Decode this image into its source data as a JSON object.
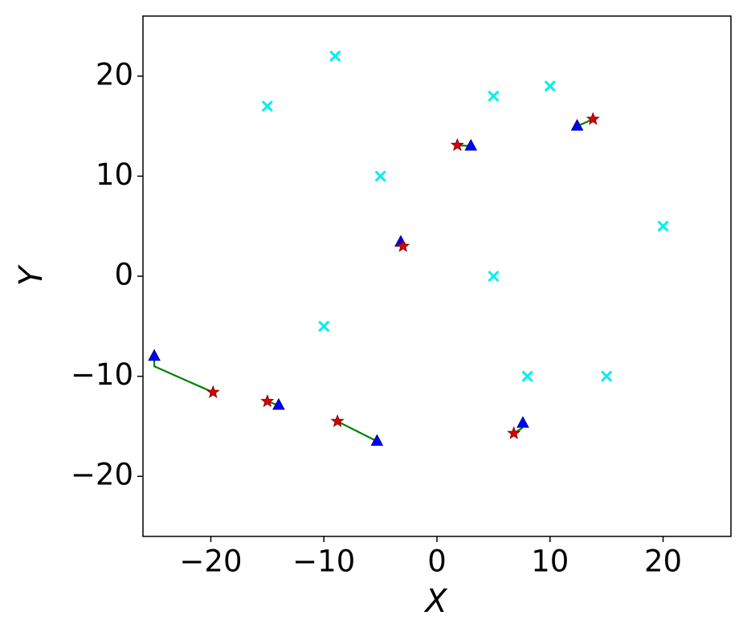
{
  "chart_data": {
    "type": "scatter",
    "x_label": "X",
    "y_label": "Y",
    "xlim": [
      -26,
      26
    ],
    "ylim": [
      -26,
      26
    ],
    "xticks": [
      {
        "value": -20,
        "label": "−20"
      },
      {
        "value": -10,
        "label": "−10"
      },
      0,
      10,
      20
    ],
    "yticks": [
      {
        "value": -20,
        "label": "−20"
      },
      {
        "value": -10,
        "label": "−10"
      },
      0,
      10,
      20
    ],
    "series": [
      {
        "marker": "line",
        "color": "#008000",
        "x": [
          -25,
          -25,
          -22,
          -19.8
        ],
        "values": [
          -8,
          -9,
          -10.5,
          -11.6
        ]
      },
      {
        "marker": "line",
        "color": "#008000",
        "x": [
          -15,
          -14
        ],
        "values": [
          -12.5,
          -12.9
        ]
      },
      {
        "marker": "line",
        "color": "#008000",
        "x": [
          -8.8,
          -5.3
        ],
        "values": [
          -14.5,
          -16.5
        ]
      },
      {
        "marker": "line",
        "color": "#008000",
        "x": [
          7.6,
          7.5,
          6.8
        ],
        "values": [
          -14.7,
          -15.2,
          -15.7
        ]
      },
      {
        "marker": "line",
        "color": "#008000",
        "x": [
          -3.2,
          -3.0
        ],
        "values": [
          3.4,
          3.0
        ]
      },
      {
        "marker": "line",
        "color": "#008000",
        "x": [
          1.8,
          3.0
        ],
        "values": [
          13.1,
          13.0
        ]
      },
      {
        "marker": "line",
        "color": "#008000",
        "x": [
          12.4,
          13.8
        ],
        "values": [
          15.0,
          15.7
        ]
      },
      {
        "marker": "x",
        "color": "#00eeee",
        "x": [
          -9,
          -15,
          5,
          10,
          -5,
          20,
          5,
          -10,
          8,
          15
        ],
        "values": [
          22,
          17,
          18,
          19,
          10,
          5,
          0,
          -5,
          -10,
          -10
        ]
      },
      {
        "marker": "triangle",
        "color": "#0000ff",
        "x": [
          -25,
          -14,
          -5.3,
          7.6,
          -3.2,
          3.0,
          12.4
        ],
        "values": [
          -8,
          -12.9,
          -16.5,
          -14.7,
          3.4,
          13.0,
          15.0
        ]
      },
      {
        "marker": "star",
        "color": "#dd0000",
        "x": [
          -19.8,
          -15,
          -8.8,
          6.8,
          -3.0,
          1.8,
          13.8
        ],
        "values": [
          -11.6,
          -12.5,
          -14.5,
          -15.7,
          3.0,
          13.1,
          15.7
        ]
      }
    ]
  }
}
